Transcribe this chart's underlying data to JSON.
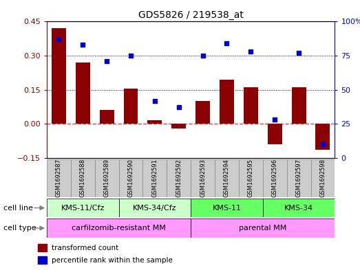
{
  "title": "GDS5826 / 219538_at",
  "samples": [
    "GSM1692587",
    "GSM1692588",
    "GSM1692589",
    "GSM1692590",
    "GSM1692591",
    "GSM1692592",
    "GSM1692593",
    "GSM1692594",
    "GSM1692595",
    "GSM1692596",
    "GSM1692597",
    "GSM1692598"
  ],
  "transformed_count": [
    0.42,
    0.27,
    0.06,
    0.155,
    0.015,
    -0.02,
    0.1,
    0.195,
    0.16,
    -0.09,
    0.16,
    -0.115
  ],
  "percentile_rank": [
    87,
    83,
    71,
    75,
    42,
    37,
    75,
    84,
    78,
    28,
    77,
    10
  ],
  "bar_color": "#8B0000",
  "dot_color": "#0000CC",
  "zero_line_color": "#CC4444",
  "grid_color": "#000000",
  "ylim_left": [
    -0.15,
    0.45
  ],
  "ylim_right": [
    0,
    100
  ],
  "yticks_left": [
    -0.15,
    0.0,
    0.15,
    0.3,
    0.45
  ],
  "yticks_right": [
    0,
    25,
    50,
    75,
    100
  ],
  "cell_line_groups": [
    {
      "label": "KMS-11/Cfz",
      "start": 0,
      "end": 3,
      "color": "#CCFFCC"
    },
    {
      "label": "KMS-34/Cfz",
      "start": 3,
      "end": 6,
      "color": "#CCFFCC"
    },
    {
      "label": "KMS-11",
      "start": 6,
      "end": 9,
      "color": "#66FF66"
    },
    {
      "label": "KMS-34",
      "start": 9,
      "end": 12,
      "color": "#66FF66"
    }
  ],
  "cell_type_groups": [
    {
      "label": "carfilzomib-resistant MM",
      "start": 0,
      "end": 6,
      "color": "#FF99FF"
    },
    {
      "label": "parental MM",
      "start": 6,
      "end": 12,
      "color": "#FF99FF"
    }
  ],
  "legend_items": [
    {
      "label": "transformed count",
      "color": "#8B0000"
    },
    {
      "label": "percentile rank within the sample",
      "color": "#0000CC"
    }
  ],
  "cell_line_label": "cell line",
  "cell_type_label": "cell type",
  "sample_box_color": "#CCCCCC",
  "sample_box_edge": "#888888"
}
